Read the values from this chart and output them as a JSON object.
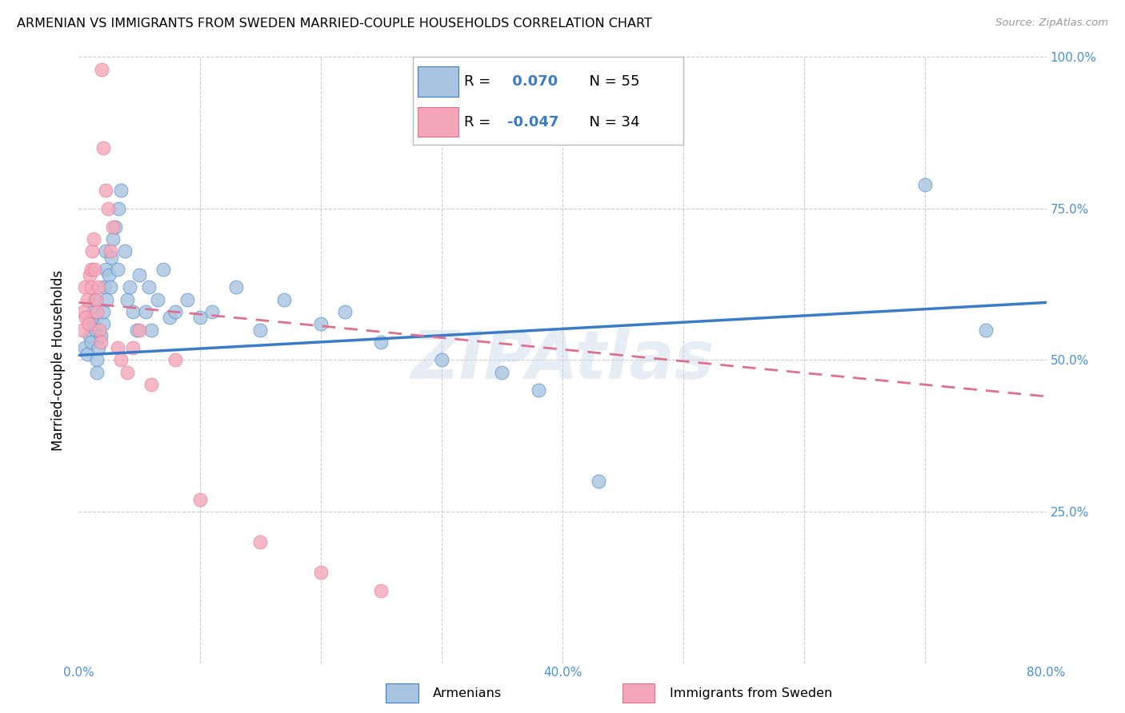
{
  "title": "ARMENIAN VS IMMIGRANTS FROM SWEDEN MARRIED-COUPLE HOUSEHOLDS CORRELATION CHART",
  "source": "Source: ZipAtlas.com",
  "ylabel": "Married-couple Households",
  "x_min": 0.0,
  "x_max": 0.8,
  "y_min": 0.0,
  "y_max": 1.0,
  "x_tick_pos": [
    0.0,
    0.1,
    0.2,
    0.3,
    0.4,
    0.5,
    0.6,
    0.7,
    0.8
  ],
  "x_tick_labels": [
    "0.0%",
    "",
    "",
    "",
    "40.0%",
    "",
    "",
    "",
    "80.0%"
  ],
  "y_tick_pos": [
    0.0,
    0.25,
    0.5,
    0.75,
    1.0
  ],
  "y_tick_labels_right": [
    "",
    "25.0%",
    "50.0%",
    "75.0%",
    "100.0%"
  ],
  "r_armenian": 0.07,
  "n_armenian": 55,
  "r_sweden": -0.047,
  "n_sweden": 34,
  "color_armenian": "#a8c4e0",
  "color_sweden": "#f4a7b9",
  "line_color_armenian": "#3a7cc9",
  "line_color_sweden": "#e07090",
  "watermark": "ZIPAtlas",
  "armenian_x": [
    0.005,
    0.007,
    0.009,
    0.01,
    0.01,
    0.012,
    0.012,
    0.013,
    0.014,
    0.015,
    0.015,
    0.016,
    0.018,
    0.02,
    0.02,
    0.021,
    0.022,
    0.022,
    0.023,
    0.025,
    0.026,
    0.027,
    0.028,
    0.03,
    0.032,
    0.033,
    0.035,
    0.038,
    0.04,
    0.042,
    0.045,
    0.048,
    0.05,
    0.055,
    0.058,
    0.06,
    0.065,
    0.07,
    0.075,
    0.08,
    0.09,
    0.1,
    0.11,
    0.13,
    0.15,
    0.17,
    0.2,
    0.22,
    0.25,
    0.3,
    0.35,
    0.38,
    0.43,
    0.7,
    0.75
  ],
  "armenian_y": [
    0.52,
    0.51,
    0.54,
    0.53,
    0.57,
    0.56,
    0.58,
    0.6,
    0.55,
    0.5,
    0.48,
    0.52,
    0.54,
    0.56,
    0.58,
    0.62,
    0.65,
    0.68,
    0.6,
    0.64,
    0.62,
    0.67,
    0.7,
    0.72,
    0.65,
    0.75,
    0.78,
    0.68,
    0.6,
    0.62,
    0.58,
    0.55,
    0.64,
    0.58,
    0.62,
    0.55,
    0.6,
    0.65,
    0.57,
    0.58,
    0.6,
    0.57,
    0.58,
    0.62,
    0.55,
    0.6,
    0.56,
    0.58,
    0.53,
    0.5,
    0.48,
    0.45,
    0.3,
    0.79,
    0.55
  ],
  "sweden_x": [
    0.003,
    0.004,
    0.005,
    0.006,
    0.007,
    0.008,
    0.009,
    0.01,
    0.01,
    0.011,
    0.012,
    0.013,
    0.014,
    0.015,
    0.016,
    0.017,
    0.018,
    0.019,
    0.02,
    0.022,
    0.024,
    0.026,
    0.028,
    0.032,
    0.035,
    0.04,
    0.045,
    0.05,
    0.06,
    0.08,
    0.1,
    0.15,
    0.2,
    0.25
  ],
  "sweden_y": [
    0.55,
    0.58,
    0.62,
    0.57,
    0.6,
    0.56,
    0.64,
    0.62,
    0.65,
    0.68,
    0.7,
    0.65,
    0.6,
    0.58,
    0.62,
    0.55,
    0.53,
    0.98,
    0.85,
    0.78,
    0.75,
    0.68,
    0.72,
    0.52,
    0.5,
    0.48,
    0.52,
    0.55,
    0.46,
    0.5,
    0.27,
    0.2,
    0.15,
    0.12
  ],
  "line_armenian_x0": 0.0,
  "line_armenian_y0": 0.508,
  "line_armenian_x1": 0.8,
  "line_armenian_y1": 0.595,
  "line_sweden_x0": 0.0,
  "line_sweden_y0": 0.595,
  "line_sweden_x1": 0.8,
  "line_sweden_y1": 0.44
}
